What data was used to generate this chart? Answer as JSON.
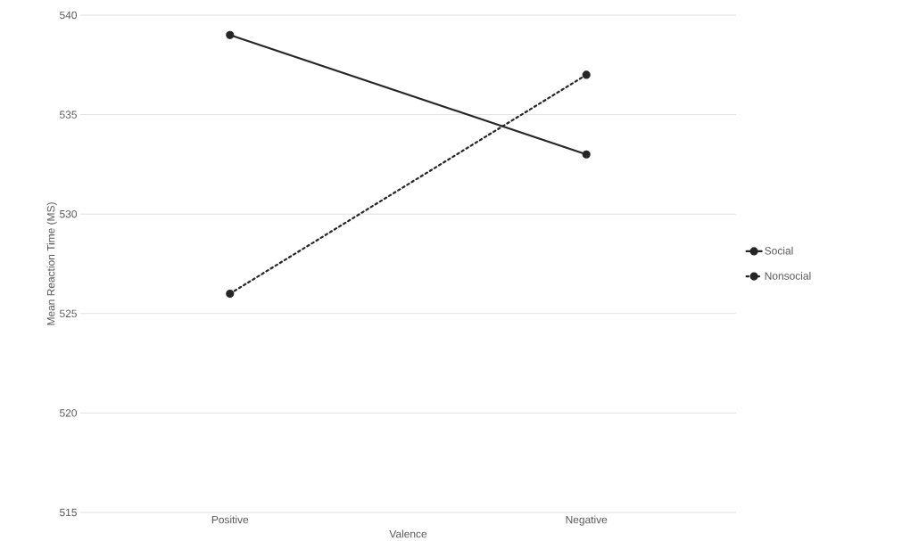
{
  "chart_data": {
    "type": "line",
    "xlabel": "Valence",
    "ylabel": "Mean Reaction Time (MS)",
    "categories": [
      "Positive",
      "Negative"
    ],
    "series": [
      {
        "name": "Social",
        "color": "#262626",
        "values": [
          539,
          533
        ],
        "line_style": "solid"
      },
      {
        "name": "Nonsocial",
        "color": "#262626",
        "values": [
          526,
          537
        ],
        "line_style": "dotted"
      }
    ],
    "ylim": [
      515,
      540
    ],
    "yticks": [
      515,
      520,
      525,
      530,
      535,
      540
    ],
    "grid": "y",
    "legend": "right",
    "marker": "circle"
  }
}
